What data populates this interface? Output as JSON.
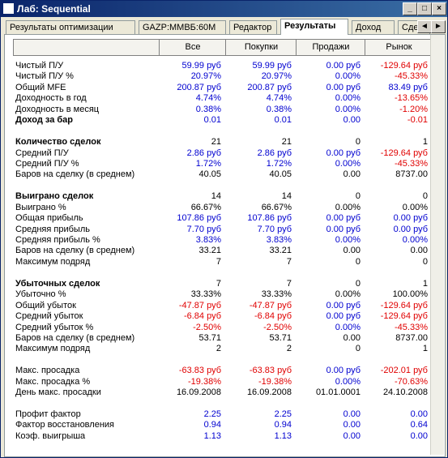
{
  "window": {
    "title": "Лаб: Sequential"
  },
  "tabs": [
    "Результаты оптимизации",
    "GAZP:ММВБ:60M",
    "Редактор",
    "Результаты",
    "Доход",
    "Сдел"
  ],
  "active_tab": 3,
  "table": {
    "columns": [
      "Все",
      "Покупки",
      "Продажи",
      "Рынок"
    ],
    "sections": [
      {
        "rows": [
          {
            "label": "Чистый П/У",
            "colored": true,
            "values": [
              "59.99 руб",
              "59.99 руб",
              "0.00 руб",
              "-129.64 руб"
            ]
          },
          {
            "label": "Чистый П/У %",
            "colored": true,
            "values": [
              "20.97%",
              "20.97%",
              "0.00%",
              "-45.33%"
            ]
          },
          {
            "label": "Общий MFE",
            "colored": true,
            "values": [
              "200.87 руб",
              "200.87 руб",
              "0.00 руб",
              "83.49 руб"
            ]
          },
          {
            "label": "Доходность в год",
            "colored": true,
            "values": [
              "4.74%",
              "4.74%",
              "0.00%",
              "-13.65%"
            ]
          },
          {
            "label": "Доходность в месяц",
            "colored": true,
            "values": [
              "0.38%",
              "0.38%",
              "0.00%",
              "-1.20%"
            ]
          },
          {
            "label": "Доход за бар",
            "bold": true,
            "colored": true,
            "values": [
              "0.01",
              "0.01",
              "0.00",
              "-0.01"
            ]
          }
        ]
      },
      {
        "rows": [
          {
            "label": "Количество сделок",
            "bold": true,
            "values": [
              "21",
              "21",
              "0",
              "1"
            ]
          },
          {
            "label": "Средний П/У",
            "colored": true,
            "values": [
              "2.86 руб",
              "2.86 руб",
              "0.00 руб",
              "-129.64 руб"
            ]
          },
          {
            "label": "Средний П/У %",
            "colored": true,
            "values": [
              "1.72%",
              "1.72%",
              "0.00%",
              "-45.33%"
            ]
          },
          {
            "label": "Баров на сделку (в среднем)",
            "values": [
              "40.05",
              "40.05",
              "0.00",
              "8737.00"
            ]
          }
        ]
      },
      {
        "rows": [
          {
            "label": "Выиграно сделок",
            "bold": true,
            "values": [
              "14",
              "14",
              "0",
              "0"
            ]
          },
          {
            "label": "Выиграно %",
            "values": [
              "66.67%",
              "66.67%",
              "0.00%",
              "0.00%"
            ]
          },
          {
            "label": "Общая прибыль",
            "colored": true,
            "values": [
              "107.86 руб",
              "107.86 руб",
              "0.00 руб",
              "0.00 руб"
            ]
          },
          {
            "label": "Средняя прибыль",
            "colored": true,
            "values": [
              "7.70 руб",
              "7.70 руб",
              "0.00 руб",
              "0.00 руб"
            ]
          },
          {
            "label": "Средняя прибыль %",
            "colored": true,
            "values": [
              "3.83%",
              "3.83%",
              "0.00%",
              "0.00%"
            ]
          },
          {
            "label": "Баров на сделку (в среднем)",
            "values": [
              "33.21",
              "33.21",
              "0.00",
              "0.00"
            ]
          },
          {
            "label": "Максимум подряд",
            "values": [
              "7",
              "7",
              "0",
              "0"
            ]
          }
        ]
      },
      {
        "rows": [
          {
            "label": "Убыточных сделок",
            "bold": true,
            "values": [
              "7",
              "7",
              "0",
              "1"
            ]
          },
          {
            "label": "Убыточно %",
            "values": [
              "33.33%",
              "33.33%",
              "0.00%",
              "100.00%"
            ]
          },
          {
            "label": "Общий убыток",
            "colored": true,
            "values": [
              "-47.87 руб",
              "-47.87 руб",
              "0.00 руб",
              "-129.64 руб"
            ]
          },
          {
            "label": "Средний убыток",
            "colored": true,
            "values": [
              "-6.84 руб",
              "-6.84 руб",
              "0.00 руб",
              "-129.64 руб"
            ]
          },
          {
            "label": "Средний убыток %",
            "colored": true,
            "values": [
              "-2.50%",
              "-2.50%",
              "0.00%",
              "-45.33%"
            ]
          },
          {
            "label": "Баров на сделку (в среднем)",
            "values": [
              "53.71",
              "53.71",
              "0.00",
              "8737.00"
            ]
          },
          {
            "label": "Максимум подряд",
            "values": [
              "2",
              "2",
              "0",
              "1"
            ]
          }
        ]
      },
      {
        "rows": [
          {
            "label": "Макс. просадка",
            "colored": true,
            "values": [
              "-63.83 руб",
              "-63.83 руб",
              "0.00 руб",
              "-202.01 руб"
            ]
          },
          {
            "label": "Макс. просадка %",
            "colored": true,
            "values": [
              "-19.38%",
              "-19.38%",
              "0.00%",
              "-70.63%"
            ]
          },
          {
            "label": "День макс. просадки",
            "values": [
              "16.09.2008",
              "16.09.2008",
              "01.01.0001",
              "24.10.2008"
            ]
          }
        ]
      },
      {
        "rows": [
          {
            "label": "Профит фактор",
            "colored": true,
            "values": [
              "2.25",
              "2.25",
              "0.00",
              "0.00"
            ]
          },
          {
            "label": "Фактор восстановления",
            "colored": true,
            "values": [
              "0.94",
              "0.94",
              "0.00",
              "0.64"
            ]
          },
          {
            "label": "Коэф. выигрыша",
            "colored": true,
            "values": [
              "1.13",
              "1.13",
              "0.00",
              "0.00"
            ]
          }
        ]
      }
    ]
  }
}
